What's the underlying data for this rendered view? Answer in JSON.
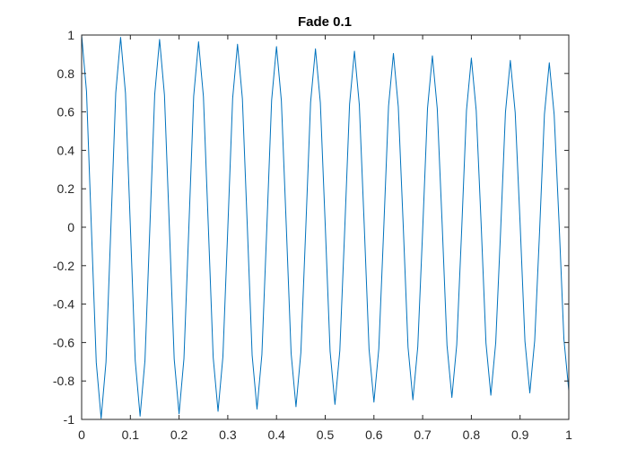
{
  "colors": {
    "background": "#ffffff",
    "axes": "#262626",
    "series": "#0072BD"
  },
  "chart_data": {
    "type": "line",
    "title": "Fade 0.1",
    "xlabel": "",
    "ylabel": "",
    "xlim": [
      0,
      1
    ],
    "ylim": [
      -1,
      1
    ],
    "grid": false,
    "box": true,
    "x_ticks": [
      0,
      0.1,
      0.2,
      0.3,
      0.4,
      0.5,
      0.6,
      0.7,
      0.8,
      0.9,
      1
    ],
    "x_tick_labels": [
      "0",
      "0.1",
      "0.2",
      "0.3",
      "0.4",
      "0.5",
      "0.6",
      "0.7",
      "0.8",
      "0.9",
      "1"
    ],
    "y_ticks": [
      -1,
      -0.8,
      -0.6,
      -0.4,
      -0.2,
      0,
      0.2,
      0.4,
      0.6,
      0.8,
      1
    ],
    "y_tick_labels": [
      "-1",
      "-0.8",
      "-0.6",
      "-0.4",
      "-0.2",
      "0",
      "0.2",
      "0.4",
      "0.6",
      "0.8",
      "1"
    ],
    "series": [
      {
        "x": [
          0,
          0.01,
          0.02,
          0.03,
          0.04,
          0.05,
          0.06,
          0.07,
          0.08,
          0.09,
          0.1,
          0.11,
          0.12,
          0.13,
          0.14,
          0.15,
          0.16,
          0.17,
          0.18,
          0.19,
          0.2,
          0.21,
          0.22,
          0.23,
          0.24,
          0.25,
          0.26,
          0.27,
          0.28,
          0.29,
          0.3,
          0.31,
          0.32,
          0.33,
          0.34,
          0.35,
          0.36,
          0.37,
          0.38,
          0.39,
          0.4,
          0.41,
          0.42,
          0.43,
          0.44,
          0.45,
          0.46,
          0.47,
          0.48,
          0.49,
          0.5,
          0.51,
          0.52,
          0.53,
          0.54,
          0.55,
          0.56,
          0.57,
          0.58,
          0.59,
          0.6,
          0.61,
          0.62,
          0.63,
          0.64,
          0.65,
          0.66,
          0.67,
          0.68,
          0.69,
          0.7,
          0.71,
          0.72,
          0.73,
          0.74,
          0.75,
          0.76,
          0.77,
          0.78,
          0.79,
          0.8,
          0.81,
          0.82,
          0.83,
          0.84,
          0.85,
          0.86,
          0.87,
          0.88,
          0.89,
          0.9,
          0.91,
          0.92,
          0.93,
          0.94,
          0.95,
          0.96,
          0.97,
          0.98,
          0.99,
          1
        ],
        "y": [
          1,
          0.706,
          -0.002,
          -0.703,
          -0.995,
          -0.702,
          -0.003,
          0.699,
          0.988,
          0.697,
          0.004,
          -0.695,
          -0.983,
          -0.693,
          -0.005,
          0.691,
          0.977,
          0.688,
          0.006,
          -0.686,
          -0.971,
          -0.684,
          -0.007,
          0.682,
          0.965,
          0.679,
          0.008,
          -0.676,
          -0.958,
          -0.673,
          -0.009,
          0.671,
          0.952,
          0.668,
          0.01,
          -0.666,
          -0.946,
          -0.663,
          -0.011,
          0.661,
          0.94,
          0.658,
          0.012,
          -0.656,
          -0.934,
          -0.653,
          -0.013,
          0.65,
          0.928,
          0.648,
          0.014,
          -0.645,
          -0.922,
          -0.642,
          -0.015,
          0.64,
          0.916,
          0.637,
          0.016,
          -0.635,
          -0.91,
          -0.632,
          -0.017,
          0.63,
          0.904,
          0.627,
          0.018,
          -0.624,
          -0.898,
          -0.622,
          -0.019,
          0.619,
          0.892,
          0.617,
          0.02,
          -0.614,
          -0.886,
          -0.611,
          -0.021,
          0.608,
          0.88,
          0.606,
          0.022,
          -0.603,
          -0.874,
          -0.601,
          -0.023,
          0.598,
          0.868,
          0.596,
          0.024,
          -0.593,
          -0.862,
          -0.59,
          -0.025,
          0.588,
          0.856,
          0.585,
          0.026,
          -0.583,
          -0.85
        ]
      }
    ]
  }
}
